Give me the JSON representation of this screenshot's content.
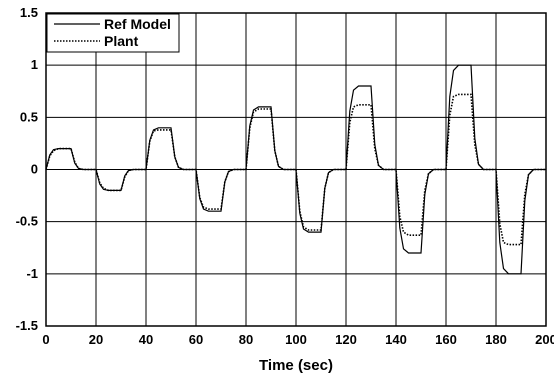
{
  "chart_data": {
    "type": "line",
    "title": "",
    "xlabel": "Time (sec)",
    "ylabel": "",
    "xlim": [
      0,
      200
    ],
    "ylim": [
      -1.5,
      1.5
    ],
    "xticks": [
      0,
      20,
      40,
      60,
      80,
      100,
      120,
      140,
      160,
      180,
      200
    ],
    "yticks": [
      -1.5,
      -1,
      -0.5,
      0,
      0.5,
      1,
      1.5
    ],
    "xtick_labels": [
      "0",
      "20",
      "40",
      "60",
      "80",
      "100",
      "120",
      "140",
      "160",
      "180",
      "200"
    ],
    "ytick_labels": [
      "-1.5",
      "-1",
      "-0.5",
      "0",
      "0.5",
      "1",
      "1.5"
    ],
    "grid": true,
    "legend_position": "top-left",
    "series": [
      {
        "name": "Ref Model",
        "style": "solid",
        "x": [
          0,
          1.5,
          3,
          5,
          10,
          11.5,
          13,
          15,
          20,
          21.5,
          23,
          25,
          30,
          31.5,
          33,
          35,
          40,
          41.5,
          43,
          45,
          50,
          51.5,
          53,
          55,
          60,
          61.5,
          63,
          65,
          70,
          71.5,
          73,
          75,
          80,
          81.5,
          83,
          85,
          90,
          91.5,
          93,
          95,
          100,
          101.5,
          103,
          105,
          110,
          111.5,
          113,
          115,
          120,
          121.5,
          123,
          125,
          130,
          131.5,
          133,
          135,
          140,
          141.5,
          143,
          145,
          150,
          151.5,
          153,
          155,
          160,
          161.5,
          163,
          165,
          170,
          171.5,
          173,
          175,
          180,
          181.5,
          183,
          185,
          190,
          191.5,
          193,
          195,
          200
        ],
        "y": [
          0,
          0.14,
          0.19,
          0.2,
          0.2,
          0.06,
          0.01,
          0,
          0,
          -0.14,
          -0.19,
          -0.2,
          -0.2,
          -0.06,
          -0.01,
          0,
          0,
          0.28,
          0.38,
          0.4,
          0.4,
          0.12,
          0.02,
          0,
          0,
          -0.28,
          -0.38,
          -0.4,
          -0.4,
          -0.12,
          -0.02,
          0,
          0,
          0.42,
          0.57,
          0.6,
          0.6,
          0.18,
          0.03,
          0,
          0,
          -0.42,
          -0.57,
          -0.6,
          -0.6,
          -0.18,
          -0.03,
          0,
          0,
          0.56,
          0.76,
          0.8,
          0.8,
          0.24,
          0.04,
          0,
          0,
          -0.56,
          -0.76,
          -0.8,
          -0.8,
          -0.24,
          -0.04,
          0,
          0,
          0.7,
          0.95,
          1.0,
          1.0,
          0.3,
          0.05,
          0,
          0,
          -0.7,
          -0.95,
          -1.0,
          -1.0,
          -0.3,
          -0.05,
          0,
          0
        ]
      },
      {
        "name": "Plant",
        "style": "dotted",
        "x": [
          0,
          1.5,
          3,
          5,
          10,
          11.5,
          13,
          15,
          20,
          21.5,
          23,
          25,
          30,
          31.5,
          33,
          35,
          40,
          41.5,
          43,
          45,
          50,
          51.5,
          53,
          55,
          60,
          61.5,
          63,
          65,
          70,
          71.5,
          73,
          75,
          80,
          81.5,
          83,
          85,
          90,
          91.5,
          93,
          95,
          100,
          101.5,
          103,
          105,
          110,
          111.5,
          113,
          115,
          120,
          121.5,
          123,
          125,
          130,
          131.5,
          133,
          135,
          140,
          141.5,
          143,
          145,
          150,
          151.5,
          153,
          155,
          160,
          161.5,
          163,
          165,
          170,
          171.5,
          173,
          175,
          180,
          181.5,
          183,
          185,
          190,
          191.5,
          193,
          195,
          200
        ],
        "y": [
          0,
          0.13,
          0.18,
          0.2,
          0.2,
          0.07,
          0.01,
          0,
          0,
          -0.13,
          -0.18,
          -0.2,
          -0.2,
          -0.07,
          -0.01,
          0,
          0,
          0.27,
          0.37,
          0.38,
          0.38,
          0.12,
          0.02,
          0,
          0,
          -0.27,
          -0.36,
          -0.38,
          -0.38,
          -0.12,
          -0.02,
          0,
          0,
          0.4,
          0.55,
          0.58,
          0.58,
          0.18,
          0.03,
          0,
          0,
          -0.4,
          -0.55,
          -0.58,
          -0.58,
          -0.18,
          -0.03,
          0,
          0,
          0.45,
          0.6,
          0.62,
          0.62,
          0.2,
          0.04,
          0,
          0,
          -0.45,
          -0.6,
          -0.63,
          -0.63,
          -0.2,
          -0.04,
          0,
          0,
          0.52,
          0.7,
          0.72,
          0.72,
          0.24,
          0.05,
          0,
          0,
          -0.52,
          -0.7,
          -0.72,
          -0.72,
          -0.24,
          -0.05,
          0,
          0
        ]
      }
    ]
  }
}
